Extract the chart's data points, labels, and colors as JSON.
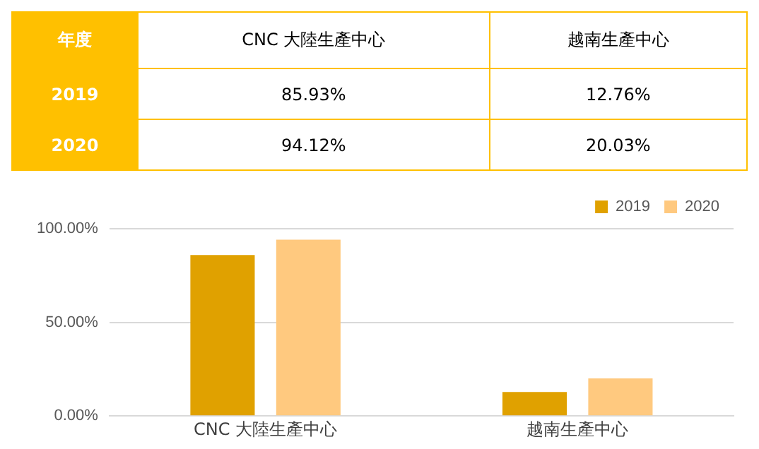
{
  "chart_data": {
    "type": "bar",
    "legend_title": "年度",
    "categories": [
      "CNC 大陸生產中心",
      "越南生產中心"
    ],
    "series": [
      {
        "name": "2019",
        "color": "#e0a100",
        "values": [
          85.93,
          12.76
        ],
        "value_labels": [
          "85.93%",
          "12.76%"
        ]
      },
      {
        "name": "2020",
        "color": "#ffc97f",
        "values": [
          94.12,
          20.03
        ],
        "value_labels": [
          "94.12%",
          "20.03%"
        ]
      }
    ],
    "ylim": [
      0,
      100
    ],
    "yticks": [
      {
        "value": 0,
        "label": "0.00%"
      },
      {
        "value": 50,
        "label": "50.00%"
      },
      {
        "value": 100,
        "label": "100.00%"
      }
    ],
    "grid": "y",
    "legend": "top right"
  }
}
